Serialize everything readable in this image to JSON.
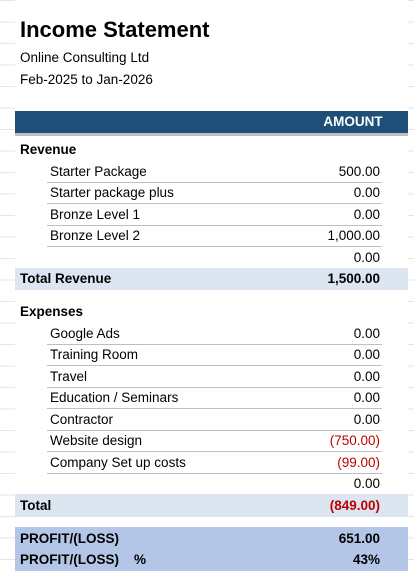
{
  "header": {
    "title": "Income Statement",
    "company": "Online Consulting Ltd",
    "period": "Feb-2025 to Jan-2026"
  },
  "table": {
    "column_header": "AMOUNT",
    "revenue": {
      "heading": "Revenue",
      "items": [
        {
          "label": "Starter Package",
          "amount": "500.00"
        },
        {
          "label": "Starter package plus",
          "amount": "0.00"
        },
        {
          "label": "Bronze Level 1",
          "amount": "0.00"
        },
        {
          "label": "Bronze Level 2",
          "amount": "1,000.00"
        },
        {
          "amount": "0.00"
        }
      ],
      "total": {
        "label": "Total Revenue",
        "amount": "1,500.00"
      }
    },
    "expenses": {
      "heading": "Expenses",
      "items": [
        {
          "label": "Google Ads",
          "amount": "0.00"
        },
        {
          "label": "Training Room",
          "amount": "0.00"
        },
        {
          "label": "Travel",
          "amount": "0.00"
        },
        {
          "label": "Education / Seminars",
          "amount": "0.00"
        },
        {
          "label": "Contractor",
          "amount": "0.00"
        },
        {
          "label": "Website design",
          "amount": "(750.00)"
        },
        {
          "label": "Company Set up costs",
          "amount": "(99.00)"
        },
        {
          "amount": "0.00"
        }
      ],
      "total": {
        "label": "Total",
        "amount": "(849.00)"
      }
    },
    "profit": {
      "label": "PROFIT/(LOSS)",
      "amount": "651.00"
    },
    "profit_pct": {
      "label": "PROFIT/(LOSS)    %",
      "amount": "43%"
    }
  }
}
